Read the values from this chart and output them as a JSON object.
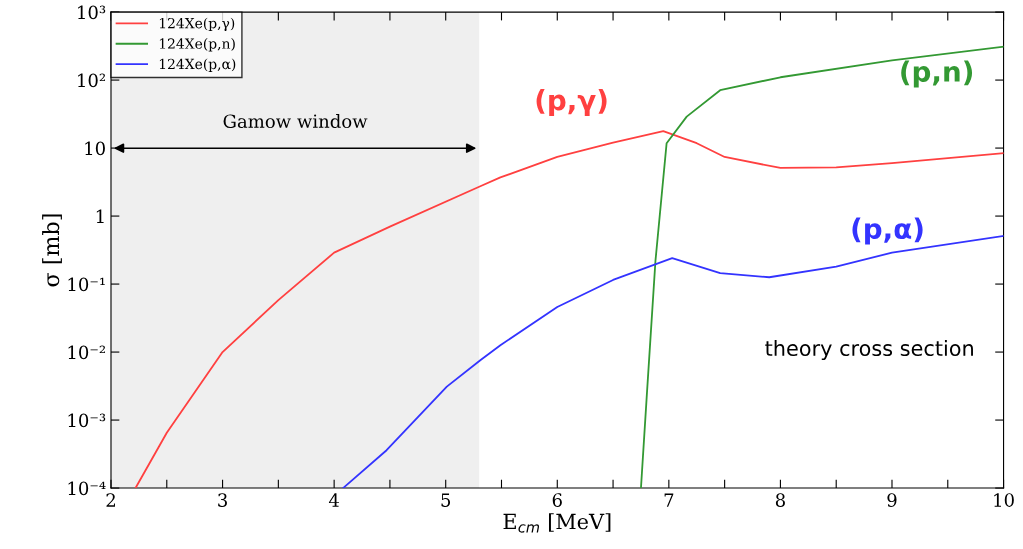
{
  "chart_data": {
    "type": "line",
    "xlabel": "E$_{cm}$ [MeV]",
    "ylabel": "σ [mb]",
    "log": "y",
    "xlim": [
      2,
      10
    ],
    "xticks": [
      2,
      {
        "value": 2.5,
        "label": null
      },
      3,
      {
        "value": 3.5,
        "label": null
      },
      4,
      {
        "value": 4.5,
        "label": null
      },
      5,
      {
        "value": 5.5,
        "label": null
      },
      6,
      {
        "value": 6.5,
        "label": null
      },
      7,
      {
        "value": 7.5,
        "label": null
      },
      8,
      {
        "value": 8.5,
        "label": null
      },
      9,
      {
        "value": 9.5,
        "label": null
      },
      10
    ],
    "ylim": [
      0.0001,
      1000
    ],
    "yticks": [
      {
        "value": 0.0001,
        "label": "10⁻⁴"
      },
      {
        "value": 0.001,
        "label": "10⁻³"
      },
      {
        "value": 0.01,
        "label": "10⁻²"
      },
      {
        "value": 0.1,
        "label": "10⁻¹"
      },
      1,
      10,
      {
        "value": 100,
        "label": "10²"
      },
      {
        "value": 1000,
        "label": "10³"
      }
    ],
    "grid": false,
    "legend": "top left",
    "line_style": "solid",
    "marker": "none",
    "series": [
      {
        "name": "124Xe(p,γ)",
        "color": "#ff4040",
        "x": [
          2.22,
          2.5,
          3,
          3.5,
          4,
          4.5,
          5.3,
          5.49,
          6,
          6.5,
          6.95,
          7.25,
          7.5,
          8,
          8.5,
          9,
          10
        ],
        "values": [
          0.0001,
          0.00065,
          0.01,
          0.058,
          0.29,
          0.7,
          2.7,
          3.7,
          7.4,
          12,
          17.8,
          11.8,
          7.4,
          5.1,
          5.2,
          6.0,
          8.4
        ]
      },
      {
        "name": "124Xe(p,n)",
        "color": "#339933",
        "x": [
          6.75,
          6.8,
          6.88,
          6.98,
          7.16,
          7.46,
          8,
          9,
          10
        ],
        "values": [
          0.0001,
          0.002,
          0.22,
          11.8,
          29,
          71,
          110,
          195,
          309
        ]
      },
      {
        "name": "124Xe(p,α)",
        "color": "#3333ff",
        "x": [
          4.08,
          4.47,
          5.01,
          5.31,
          5.49,
          6,
          6.5,
          7.03,
          7.46,
          7.9,
          8.5,
          9,
          10
        ],
        "values": [
          0.0001,
          0.00036,
          0.0031,
          0.0076,
          0.0126,
          0.046,
          0.115,
          0.24,
          0.145,
          0.126,
          0.18,
          0.29,
          0.51
        ]
      }
    ],
    "bands": [
      {
        "axis": "x",
        "from": 2,
        "to": 5.3,
        "label": "Gamow window",
        "color": "#efefef"
      }
    ],
    "annotations": [
      "(p,γ)",
      "(p,n)",
      "(p,α)",
      "theory cross section"
    ]
  }
}
